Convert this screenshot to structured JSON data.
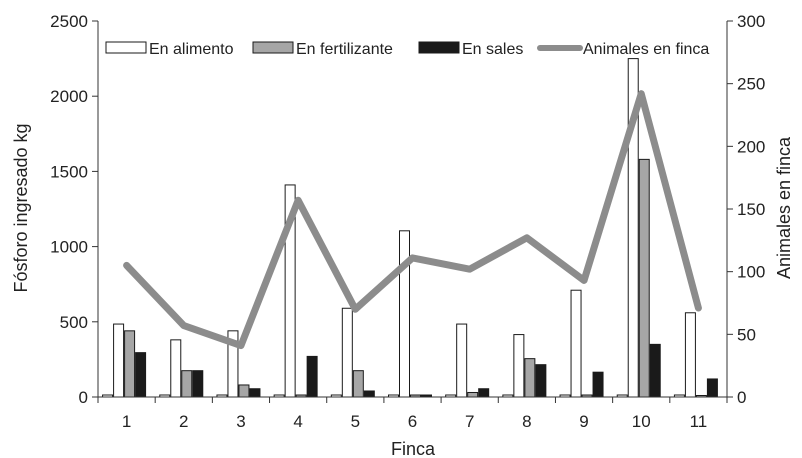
{
  "chart_data": {
    "type": "bar",
    "xlabel": "Finca",
    "ylabel": "Fósforo ingresado kg",
    "y2label": "Animales en finca",
    "ylim": [
      0,
      2500
    ],
    "y2lim": [
      0,
      300
    ],
    "yticks": [
      "0",
      "500",
      "1000",
      "1500",
      "2000",
      "2500"
    ],
    "y2ticks": [
      "0",
      "50",
      "100",
      "150",
      "200",
      "250",
      "300"
    ],
    "categories": [
      "1",
      "2",
      "3",
      "4",
      "5",
      "6",
      "7",
      "8",
      "9",
      "10",
      "11"
    ],
    "grid": false,
    "legend_position": "top",
    "series": [
      {
        "name": "En alimento",
        "type": "bar",
        "axis": "left",
        "color": "#ffffff",
        "values": [
          485,
          380,
          440,
          1410,
          590,
          1105,
          485,
          415,
          710,
          2250,
          560
        ]
      },
      {
        "name": "En fertilizante",
        "type": "bar",
        "axis": "left",
        "color": "#a6a6a6",
        "values": [
          440,
          175,
          80,
          0,
          175,
          0,
          30,
          255,
          0,
          1580,
          10
        ]
      },
      {
        "name": "En sales",
        "type": "bar",
        "axis": "left",
        "color": "#1a1a1a",
        "values": [
          295,
          175,
          55,
          270,
          40,
          0,
          55,
          215,
          165,
          350,
          120
        ]
      },
      {
        "name": "Animales en finca",
        "type": "line",
        "axis": "right",
        "color": "#8c8c8c",
        "values": [
          105,
          57,
          41,
          157,
          70,
          111,
          102,
          127,
          93,
          242,
          71
        ]
      }
    ]
  }
}
